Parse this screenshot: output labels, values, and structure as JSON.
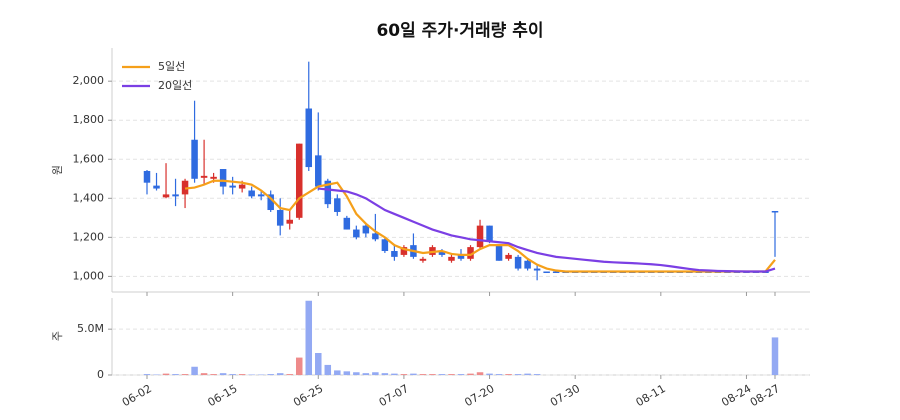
{
  "chart_data": [
    {
      "type": "candlestick",
      "title": "60일 주가·거래량 추이",
      "ylabel": "원",
      "categories": [
        "06-02",
        null,
        null,
        null,
        null,
        null,
        null,
        null,
        null,
        "06-15",
        null,
        null,
        null,
        null,
        null,
        null,
        null,
        null,
        "06-25",
        null,
        null,
        null,
        null,
        null,
        null,
        null,
        null,
        "07-07",
        null,
        null,
        null,
        null,
        null,
        null,
        null,
        null,
        "07-20",
        null,
        null,
        null,
        null,
        null,
        null,
        null,
        null,
        "07-30",
        null,
        null,
        null,
        null,
        null,
        null,
        null,
        null,
        "08-11",
        null,
        null,
        null,
        null,
        null,
        null,
        null,
        null,
        "08-24",
        null,
        null,
        "08-27"
      ],
      "open": [
        1540,
        1465,
        1405,
        1420,
        1420,
        1700,
        1505,
        1500,
        1550,
        1465,
        1450,
        1440,
        1420,
        1420,
        1340,
        1270,
        1300,
        1860,
        1620,
        1490,
        1400,
        1300,
        1240,
        1260,
        1220,
        1190,
        1130,
        1110,
        1160,
        1080,
        1110,
        1130,
        1080,
        1110,
        1090,
        1150,
        1260,
        1160,
        1090,
        1100,
        1080,
        1040,
        1025,
        1025,
        1025,
        1025,
        1025,
        1025,
        1025,
        1025,
        1025,
        1025,
        1025,
        1025,
        1025,
        1025,
        1025,
        1025,
        1025,
        1025,
        1025,
        1025,
        1025,
        1025,
        1025,
        1025,
        1335
      ],
      "high": [
        1545,
        1530,
        1580,
        1500,
        1500,
        1900,
        1700,
        1530,
        1550,
        1510,
        1490,
        1460,
        1440,
        1440,
        1400,
        1340,
        1680,
        2100,
        1840,
        1500,
        1420,
        1310,
        1260,
        1270,
        1320,
        1200,
        1160,
        1160,
        1220,
        1100,
        1160,
        1140,
        1120,
        1140,
        1160,
        1290,
        1260,
        1160,
        1120,
        1110,
        1090,
        1060,
        1025,
        1025,
        1025,
        1025,
        1025,
        1025,
        1025,
        1025,
        1025,
        1025,
        1025,
        1025,
        1025,
        1025,
        1025,
        1025,
        1025,
        1025,
        1025,
        1025,
        1025,
        1025,
        1025,
        1025,
        1335
      ],
      "low": [
        1420,
        1440,
        1400,
        1360,
        1350,
        1480,
        1470,
        1480,
        1420,
        1420,
        1430,
        1400,
        1390,
        1330,
        1210,
        1240,
        1290,
        1540,
        1440,
        1350,
        1310,
        1240,
        1190,
        1200,
        1180,
        1120,
        1080,
        1100,
        1090,
        1070,
        1100,
        1100,
        1070,
        1080,
        1080,
        1140,
        1170,
        1080,
        1080,
        1030,
        1030,
        980,
        1020,
        1020,
        1020,
        1020,
        1020,
        1020,
        1020,
        1020,
        1020,
        1020,
        1020,
        1020,
        1020,
        1020,
        1020,
        1020,
        1020,
        1020,
        1020,
        1020,
        1020,
        1020,
        1020,
        1020,
        1100
      ],
      "close": [
        1480,
        1450,
        1420,
        1410,
        1490,
        1500,
        1515,
        1510,
        1460,
        1455,
        1470,
        1410,
        1410,
        1340,
        1260,
        1290,
        1680,
        1560,
        1460,
        1370,
        1330,
        1240,
        1200,
        1220,
        1190,
        1130,
        1100,
        1150,
        1100,
        1090,
        1150,
        1110,
        1100,
        1090,
        1150,
        1260,
        1180,
        1080,
        1110,
        1040,
        1040,
        1030,
        1022,
        1022,
        1022,
        1022,
        1022,
        1022,
        1022,
        1022,
        1022,
        1022,
        1022,
        1022,
        1022,
        1022,
        1022,
        1022,
        1022,
        1022,
        1022,
        1022,
        1022,
        1022,
        1022,
        1022,
        1330
      ],
      "up_color": "#d8302c",
      "down_color": "#2f6be0",
      "series": [
        {
          "name": "5일선",
          "color": "#f5a01a",
          "values": [
            null,
            null,
            null,
            null,
            1450,
            1455,
            1470,
            1490,
            1490,
            1485,
            1480,
            1470,
            1440,
            1400,
            1350,
            1340,
            1400,
            1430,
            1460,
            1470,
            1480,
            1410,
            1320,
            1270,
            1230,
            1200,
            1160,
            1140,
            1130,
            1120,
            1125,
            1130,
            1115,
            1110,
            1110,
            1140,
            1160,
            1160,
            1160,
            1130,
            1090,
            1060,
            1040,
            1030,
            1025,
            1025,
            1025,
            1025,
            1025,
            1025,
            1025,
            1025,
            1025,
            1025,
            1025,
            1025,
            1025,
            1025,
            1025,
            1025,
            1025,
            1025,
            1025,
            1025,
            1025,
            1025,
            1085
          ]
        },
        {
          "name": "20일선",
          "color": "#7b3fe4",
          "values": [
            null,
            null,
            null,
            null,
            null,
            null,
            null,
            null,
            null,
            null,
            null,
            null,
            null,
            null,
            null,
            null,
            null,
            null,
            1450,
            1445,
            1440,
            1435,
            1420,
            1400,
            1370,
            1340,
            1320,
            1300,
            1280,
            1260,
            1240,
            1225,
            1210,
            1200,
            1190,
            1185,
            1180,
            1175,
            1170,
            1150,
            1135,
            1120,
            1110,
            1100,
            1095,
            1090,
            1085,
            1080,
            1075,
            1072,
            1070,
            1068,
            1065,
            1062,
            1058,
            1052,
            1045,
            1038,
            1032,
            1030,
            1028,
            1027,
            1026,
            1025,
            1025,
            1025,
            1040
          ]
        }
      ],
      "ylim": [
        920,
        2170
      ],
      "yticks": [
        {
          "value": 1000,
          "label": "1,000"
        },
        {
          "value": 1200,
          "label": "1,200"
        },
        {
          "value": 1400,
          "label": "1,400"
        },
        {
          "value": 1600,
          "label": "1,600"
        },
        {
          "value": 1800,
          "label": "1,800"
        },
        {
          "value": 2000,
          "label": "2,000"
        }
      ],
      "grid": true,
      "legend": "upper left"
    },
    {
      "type": "bar",
      "ylabel": "주",
      "values": [
        100000,
        50000,
        150000,
        100000,
        100000,
        900000,
        200000,
        100000,
        200000,
        100000,
        100000,
        50000,
        50000,
        100000,
        200000,
        100000,
        1900000,
        8100000,
        2400000,
        1100000,
        500000,
        400000,
        300000,
        200000,
        300000,
        200000,
        150000,
        100000,
        150000,
        100000,
        100000,
        100000,
        100000,
        100000,
        150000,
        300000,
        150000,
        100000,
        100000,
        100000,
        150000,
        100000,
        0,
        0,
        0,
        0,
        0,
        0,
        0,
        0,
        0,
        0,
        0,
        0,
        0,
        0,
        0,
        0,
        0,
        0,
        0,
        0,
        0,
        0,
        0,
        0,
        4100000
      ],
      "up_color": "#ee8a8a",
      "down_color": "#93a9f3",
      "ylim": [
        0,
        8400000
      ],
      "yticks": [
        0,
        {
          "value": 5000000,
          "label": "5.0M"
        }
      ],
      "grid": true
    }
  ]
}
